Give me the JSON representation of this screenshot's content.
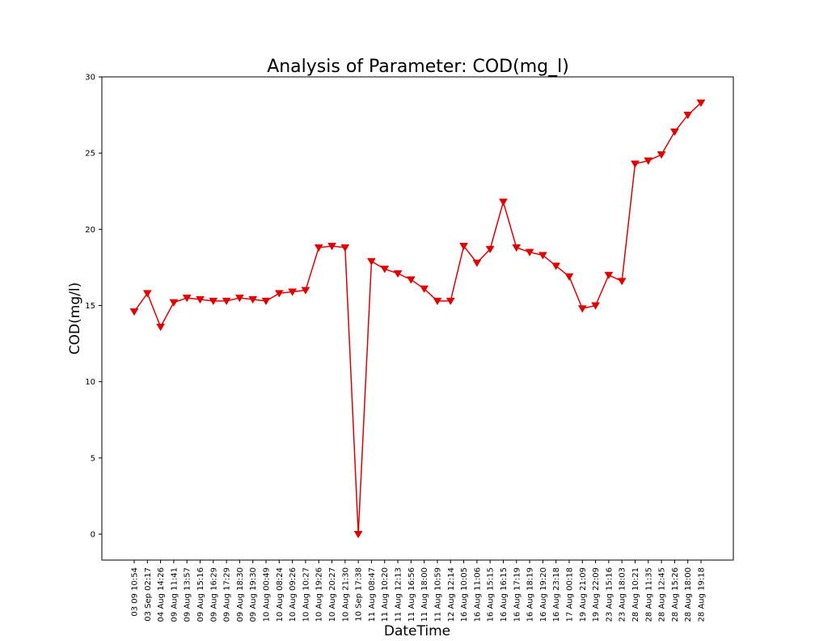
{
  "chart_data": {
    "type": "line",
    "title": "Analysis of Parameter: COD(mg_l)",
    "xlabel": "DateTime",
    "ylabel": "COD(mg/l)",
    "ylim": [
      -1.7,
      30
    ],
    "yticks": [
      0,
      5,
      10,
      15,
      20,
      25,
      30
    ],
    "grid": false,
    "legend": "none",
    "line_color": "#e00000",
    "marker": "triangle-down",
    "categories": [
      "03 09 10:54",
      "03 Sep 02:17",
      "04 Aug 14:26",
      "09 Aug 11:41",
      "09 Aug 13:57",
      "09 Aug 15:16",
      "09 Aug 16:29",
      "09 Aug 17:29",
      "09 Aug 18:30",
      "09 Aug 19:30",
      "10 Aug 00:49",
      "10 Aug 08:24",
      "10 Aug 09:26",
      "10 Aug 10:27",
      "10 Aug 19:26",
      "10 Aug 20:27",
      "10 Aug 21:30",
      "10 Sep 17:38",
      "11 Aug 08:47",
      "11 Aug 10:20",
      "11 Aug 12:13",
      "11 Aug 16:56",
      "11 Aug 18:00",
      "11 Aug 10:59",
      "12 Aug 12:14",
      "16 Aug 10:05",
      "16 Aug 11:06",
      "16 Aug 15:15",
      "16 Aug 16:15",
      "16 Aug 17:19",
      "16 Aug 18:19",
      "16 Aug 19:20",
      "16 Aug 23:18",
      "17 Aug 00:18",
      "19 Aug 21:09",
      "19 Aug 22:09",
      "23 Aug 15:16",
      "23 Aug 18:03",
      "28 Aug 10:21",
      "28 Aug 11:35",
      "28 Aug 12:45",
      "28 Aug 15:26",
      "28 Aug 18:00",
      "28 Aug 19:18"
    ],
    "series": [
      {
        "values": [
          14.6,
          15.8,
          13.6,
          15.2,
          15.5,
          15.4,
          15.3,
          15.3,
          15.5,
          15.4,
          15.3,
          15.8,
          15.9,
          16.0,
          18.8,
          18.9,
          18.8,
          0.0,
          17.9,
          17.4,
          17.1,
          16.7,
          16.1,
          15.3,
          15.3,
          18.9,
          17.8,
          18.7,
          21.8,
          18.8,
          18.5,
          18.3,
          17.6,
          16.9,
          14.8,
          15.0,
          17.0,
          16.6,
          24.3,
          24.5,
          24.9,
          26.4,
          27.5,
          28.3
        ]
      }
    ]
  }
}
